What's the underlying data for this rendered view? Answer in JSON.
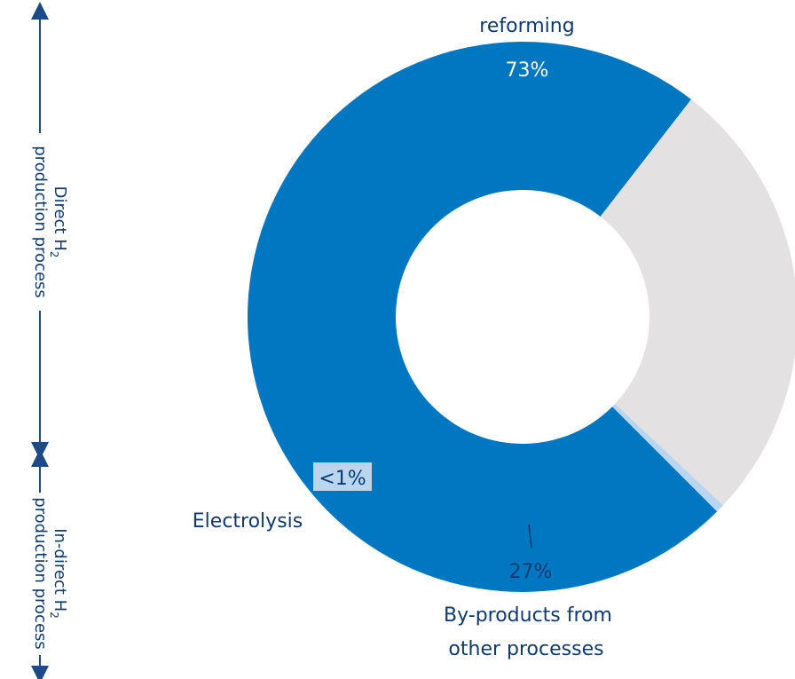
{
  "chart_data": {
    "type": "pie",
    "donut": true,
    "slices": [
      {
        "name": "reforming",
        "value": 73,
        "value_label": "73%",
        "color": "#0077c0"
      },
      {
        "name": "By-products from other processes",
        "value": 26.5,
        "value_label": "27%",
        "color": "#e3e1e2"
      },
      {
        "name": "Electrolysis",
        "value": 0.5,
        "value_label": "<1%",
        "color": "#b8d6ef"
      }
    ],
    "labels": {
      "reforming_name": "reforming",
      "reforming_pct": "73%",
      "byproducts_line1": "By-products from",
      "byproducts_line2": "other processes",
      "byproducts_pct": "27%",
      "electrolysis_name": "Electrolysis",
      "electrolysis_pct": "<1%"
    },
    "side_groups": {
      "direct_line1": "Direct H",
      "direct_sub": "2",
      "direct_line2": "production process",
      "indirect_line1": "In-direct H",
      "indirect_sub": "2",
      "indirect_line2": "production process"
    },
    "colors": {
      "reforming": "#0077c0",
      "byproducts": "#e3e1e2",
      "electrolysis": "#b8d6ef",
      "text_dark": "#0f3a70",
      "arrow": "#1b4a86"
    }
  }
}
